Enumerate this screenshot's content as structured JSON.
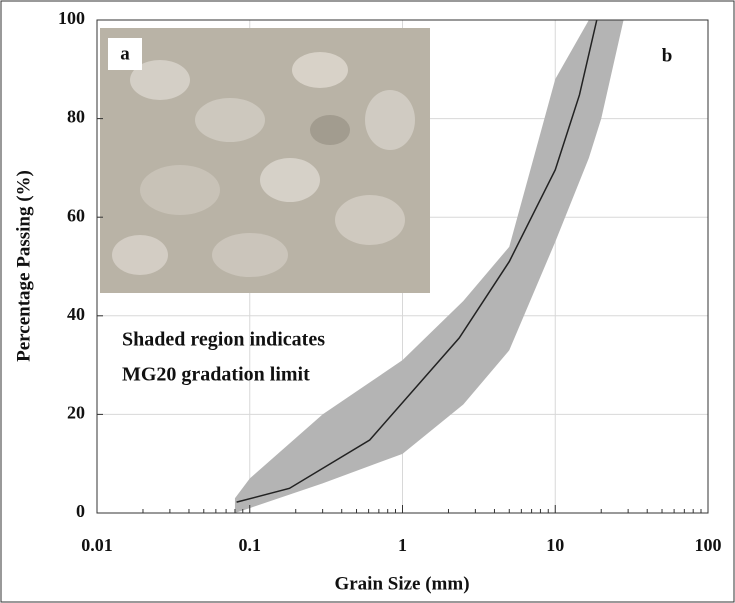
{
  "chart_data": {
    "type": "line",
    "xlabel": "Grain Size (mm)",
    "ylabel": "Percentage Passing (%)",
    "x_scale": "log",
    "xlim": [
      0.01,
      100
    ],
    "ylim": [
      0,
      100
    ],
    "xticks": [
      0.01,
      0.1,
      1,
      10,
      100
    ],
    "yticks": [
      0,
      20,
      40,
      60,
      80,
      100
    ],
    "grid": true,
    "series": [
      {
        "color": "#222222",
        "x": [
          0.082,
          0.182,
          0.61,
          2.35,
          5.0,
          10,
          14.4,
          18.7
        ],
        "values": [
          2.2,
          5,
          14.8,
          35.5,
          51,
          69.6,
          84.8,
          100
        ]
      }
    ],
    "band": {
      "color": "#b4b4b4",
      "x": [
        0.08,
        0.1,
        0.3,
        1,
        2.5,
        5,
        10,
        16.6,
        20,
        28
      ],
      "upper": [
        3,
        7,
        20,
        31,
        43,
        54,
        88,
        100,
        100,
        100
      ],
      "lower": [
        0,
        1,
        6,
        12,
        22,
        33,
        55,
        72,
        80,
        100
      ]
    },
    "annotations": [
      "Shaded region indicates",
      "MG20 gradation limit"
    ],
    "panel_labels": [
      "a",
      "b"
    ]
  }
}
